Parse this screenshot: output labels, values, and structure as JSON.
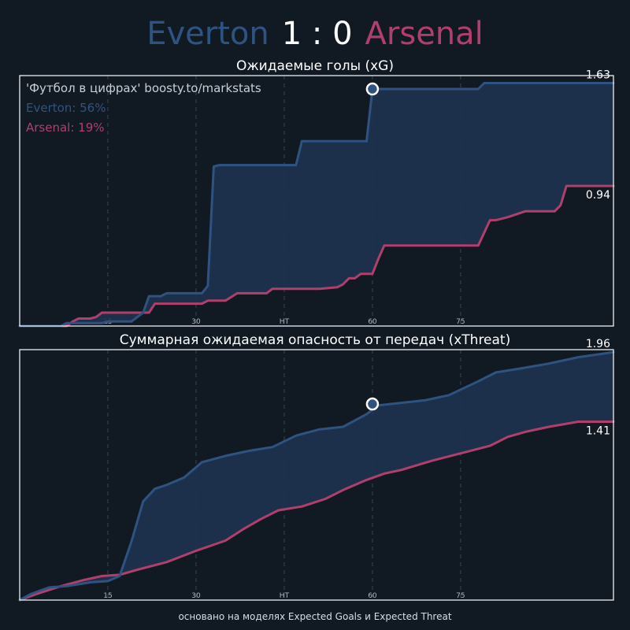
{
  "header": {
    "home_team": "Everton",
    "score": "1 : 0",
    "away_team": "Arsenal"
  },
  "colors": {
    "home": "#2f5380",
    "away": "#b03f6c",
    "fill": "#1e3250",
    "background": "#111a23",
    "marker": "#ffffff"
  },
  "footer": "основано на моделях Expected Goals и Expected Threat",
  "chart_data": [
    {
      "type": "line",
      "title": "Ожидаемые голы (xG)",
      "watermark": "'Футбол в цифрах' boosty.to/markstats",
      "legend": [
        {
          "label": "Everton: 56%",
          "color": "#2f5380"
        },
        {
          "label": "Arsenal: 19%",
          "color": "#b03f6c"
        }
      ],
      "xlim": [
        0,
        101
      ],
      "ylim": [
        0,
        1.68
      ],
      "x_ticks": [
        {
          "value": 15,
          "label": "15"
        },
        {
          "value": 30,
          "label": "30"
        },
        {
          "value": 45,
          "label": "HT"
        },
        {
          "value": 60,
          "label": "60"
        },
        {
          "value": 75,
          "label": "75"
        }
      ],
      "grid": "vertical dashed at ticks",
      "final_labels": [
        {
          "series": "Everton",
          "value": "1.63"
        },
        {
          "series": "Arsenal",
          "value": "0.94"
        }
      ],
      "goal_markers": [
        {
          "x": 60,
          "y": 1.59,
          "team": "Everton"
        }
      ],
      "series": [
        {
          "name": "Everton",
          "color": "#2f5380",
          "points": [
            [
              0,
              0
            ],
            [
              7,
              0
            ],
            [
              8,
              0.02
            ],
            [
              14,
              0.02
            ],
            [
              15,
              0.03
            ],
            [
              19,
              0.03
            ],
            [
              21,
              0.09
            ],
            [
              22,
              0.2
            ],
            [
              24,
              0.2
            ],
            [
              25,
              0.22
            ],
            [
              30,
              0.22
            ],
            [
              31,
              0.22
            ],
            [
              32,
              0.27
            ],
            [
              33,
              1.07
            ],
            [
              34,
              1.08
            ],
            [
              42,
              1.08
            ],
            [
              43,
              1.08
            ],
            [
              47,
              1.08
            ],
            [
              48,
              1.24
            ],
            [
              58,
              1.24
            ],
            [
              59,
              1.24
            ],
            [
              60,
              1.59
            ],
            [
              78,
              1.59
            ],
            [
              79,
              1.63
            ],
            [
              101,
              1.63
            ]
          ]
        },
        {
          "name": "Arsenal",
          "color": "#b03f6c",
          "points": [
            [
              0,
              0
            ],
            [
              8,
              0
            ],
            [
              9,
              0.03
            ],
            [
              10,
              0.05
            ],
            [
              12,
              0.05
            ],
            [
              13,
              0.06
            ],
            [
              14,
              0.09
            ],
            [
              22,
              0.09
            ],
            [
              23,
              0.15
            ],
            [
              29,
              0.15
            ],
            [
              30,
              0.15
            ],
            [
              31,
              0.15
            ],
            [
              32,
              0.17
            ],
            [
              34,
              0.17
            ],
            [
              35,
              0.17
            ],
            [
              37,
              0.22
            ],
            [
              40,
              0.22
            ],
            [
              42,
              0.22
            ],
            [
              43,
              0.25
            ],
            [
              50,
              0.25
            ],
            [
              51,
              0.25
            ],
            [
              54,
              0.26
            ],
            [
              55,
              0.28
            ],
            [
              56,
              0.32
            ],
            [
              57,
              0.32
            ],
            [
              58,
              0.35
            ],
            [
              59,
              0.35
            ],
            [
              60,
              0.35
            ],
            [
              61,
              0.45
            ],
            [
              62,
              0.54
            ],
            [
              76,
              0.54
            ],
            [
              77,
              0.54
            ],
            [
              78,
              0.54
            ],
            [
              80,
              0.71
            ],
            [
              81,
              0.71
            ],
            [
              83,
              0.73
            ],
            [
              86,
              0.77
            ],
            [
              91,
              0.77
            ],
            [
              92,
              0.81
            ],
            [
              93,
              0.94
            ],
            [
              101,
              0.94
            ]
          ]
        }
      ]
    },
    {
      "type": "line",
      "title": "Суммарная ожидаемая опасность от передач (xThreat)",
      "xlim": [
        0,
        101
      ],
      "ylim": [
        0,
        1.98
      ],
      "x_ticks": [
        {
          "value": 15,
          "label": "15"
        },
        {
          "value": 30,
          "label": "30"
        },
        {
          "value": 45,
          "label": "HT"
        },
        {
          "value": 60,
          "label": "60"
        },
        {
          "value": 75,
          "label": "75"
        }
      ],
      "grid": "vertical dashed at ticks",
      "final_labels": [
        {
          "series": "Everton",
          "value": "1.96"
        },
        {
          "series": "Arsenal",
          "value": "1.41"
        }
      ],
      "goal_markers": [
        {
          "x": 60,
          "y": 1.55,
          "team": "Everton"
        }
      ],
      "series": [
        {
          "name": "Everton",
          "color": "#2f5380",
          "points": [
            [
              0,
              0
            ],
            [
              2,
              0.05
            ],
            [
              5,
              0.1
            ],
            [
              8,
              0.11
            ],
            [
              12,
              0.14
            ],
            [
              15,
              0.15
            ],
            [
              17,
              0.19
            ],
            [
              19,
              0.46
            ],
            [
              21,
              0.78
            ],
            [
              23,
              0.88
            ],
            [
              25,
              0.91
            ],
            [
              28,
              0.97
            ],
            [
              31,
              1.09
            ],
            [
              35,
              1.14
            ],
            [
              39,
              1.18
            ],
            [
              43,
              1.21
            ],
            [
              47,
              1.3
            ],
            [
              51,
              1.35
            ],
            [
              55,
              1.37
            ],
            [
              59,
              1.47
            ],
            [
              61,
              1.54
            ],
            [
              65,
              1.56
            ],
            [
              69,
              1.58
            ],
            [
              73,
              1.62
            ],
            [
              78,
              1.73
            ],
            [
              81,
              1.8
            ],
            [
              85,
              1.83
            ],
            [
              90,
              1.87
            ],
            [
              95,
              1.92
            ],
            [
              101,
              1.96
            ]
          ]
        },
        {
          "name": "Arsenal",
          "color": "#b03f6c",
          "points": [
            [
              0,
              0
            ],
            [
              3,
              0.05
            ],
            [
              7,
              0.11
            ],
            [
              11,
              0.16
            ],
            [
              14,
              0.19
            ],
            [
              17,
              0.2
            ],
            [
              20,
              0.24
            ],
            [
              25,
              0.3
            ],
            [
              30,
              0.39
            ],
            [
              35,
              0.47
            ],
            [
              38,
              0.56
            ],
            [
              41,
              0.64
            ],
            [
              44,
              0.71
            ],
            [
              48,
              0.74
            ],
            [
              52,
              0.8
            ],
            [
              55,
              0.87
            ],
            [
              59,
              0.95
            ],
            [
              62,
              1.0
            ],
            [
              65,
              1.03
            ],
            [
              70,
              1.1
            ],
            [
              75,
              1.16
            ],
            [
              80,
              1.22
            ],
            [
              83,
              1.29
            ],
            [
              86,
              1.33
            ],
            [
              90,
              1.37
            ],
            [
              95,
              1.41
            ],
            [
              101,
              1.41
            ]
          ]
        }
      ]
    }
  ]
}
